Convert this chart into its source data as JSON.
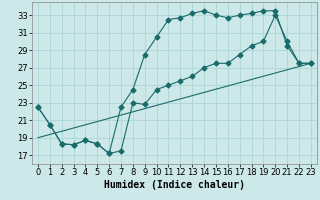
{
  "title": "",
  "xlabel": "Humidex (Indice chaleur)",
  "ylabel": "",
  "bg_color": "#cce8e8",
  "line_color": "#1a6b6b",
  "grid_color": "#b0d8d8",
  "xlim": [
    -0.5,
    23.5
  ],
  "ylim": [
    16.0,
    34.5
  ],
  "yticks": [
    17,
    19,
    21,
    23,
    25,
    27,
    29,
    31,
    33
  ],
  "xticks": [
    0,
    1,
    2,
    3,
    4,
    5,
    6,
    7,
    8,
    9,
    10,
    11,
    12,
    13,
    14,
    15,
    16,
    17,
    18,
    19,
    20,
    21,
    22,
    23
  ],
  "line1_x": [
    0,
    1,
    2,
    3,
    4,
    5,
    6,
    7,
    8,
    9,
    10,
    11,
    12,
    13,
    14,
    15,
    16,
    17,
    18,
    19,
    20,
    21,
    22,
    23
  ],
  "line1_y": [
    22.5,
    20.5,
    18.3,
    18.2,
    18.7,
    18.3,
    17.2,
    17.5,
    23.0,
    22.8,
    24.5,
    25.0,
    25.5,
    26.0,
    27.0,
    27.5,
    27.5,
    28.5,
    29.5,
    30.0,
    33.0,
    30.0,
    27.5,
    27.5
  ],
  "line2_x": [
    0,
    1,
    2,
    3,
    4,
    5,
    6,
    7,
    8,
    9,
    10,
    11,
    12,
    13,
    14,
    15,
    16,
    17,
    18,
    19,
    20,
    21,
    22,
    23
  ],
  "line2_y": [
    22.5,
    20.5,
    18.3,
    18.2,
    18.7,
    18.3,
    17.2,
    22.5,
    24.5,
    28.5,
    30.5,
    32.5,
    32.7,
    33.2,
    33.5,
    33.0,
    32.7,
    33.0,
    33.2,
    33.5,
    33.5,
    29.5,
    27.5,
    27.5
  ],
  "line3_x": [
    0,
    23
  ],
  "line3_y": [
    19.0,
    27.5
  ],
  "marker": "D",
  "marker_size": 2.5,
  "font_size_xlabel": 7,
  "font_size_ticks": 6
}
